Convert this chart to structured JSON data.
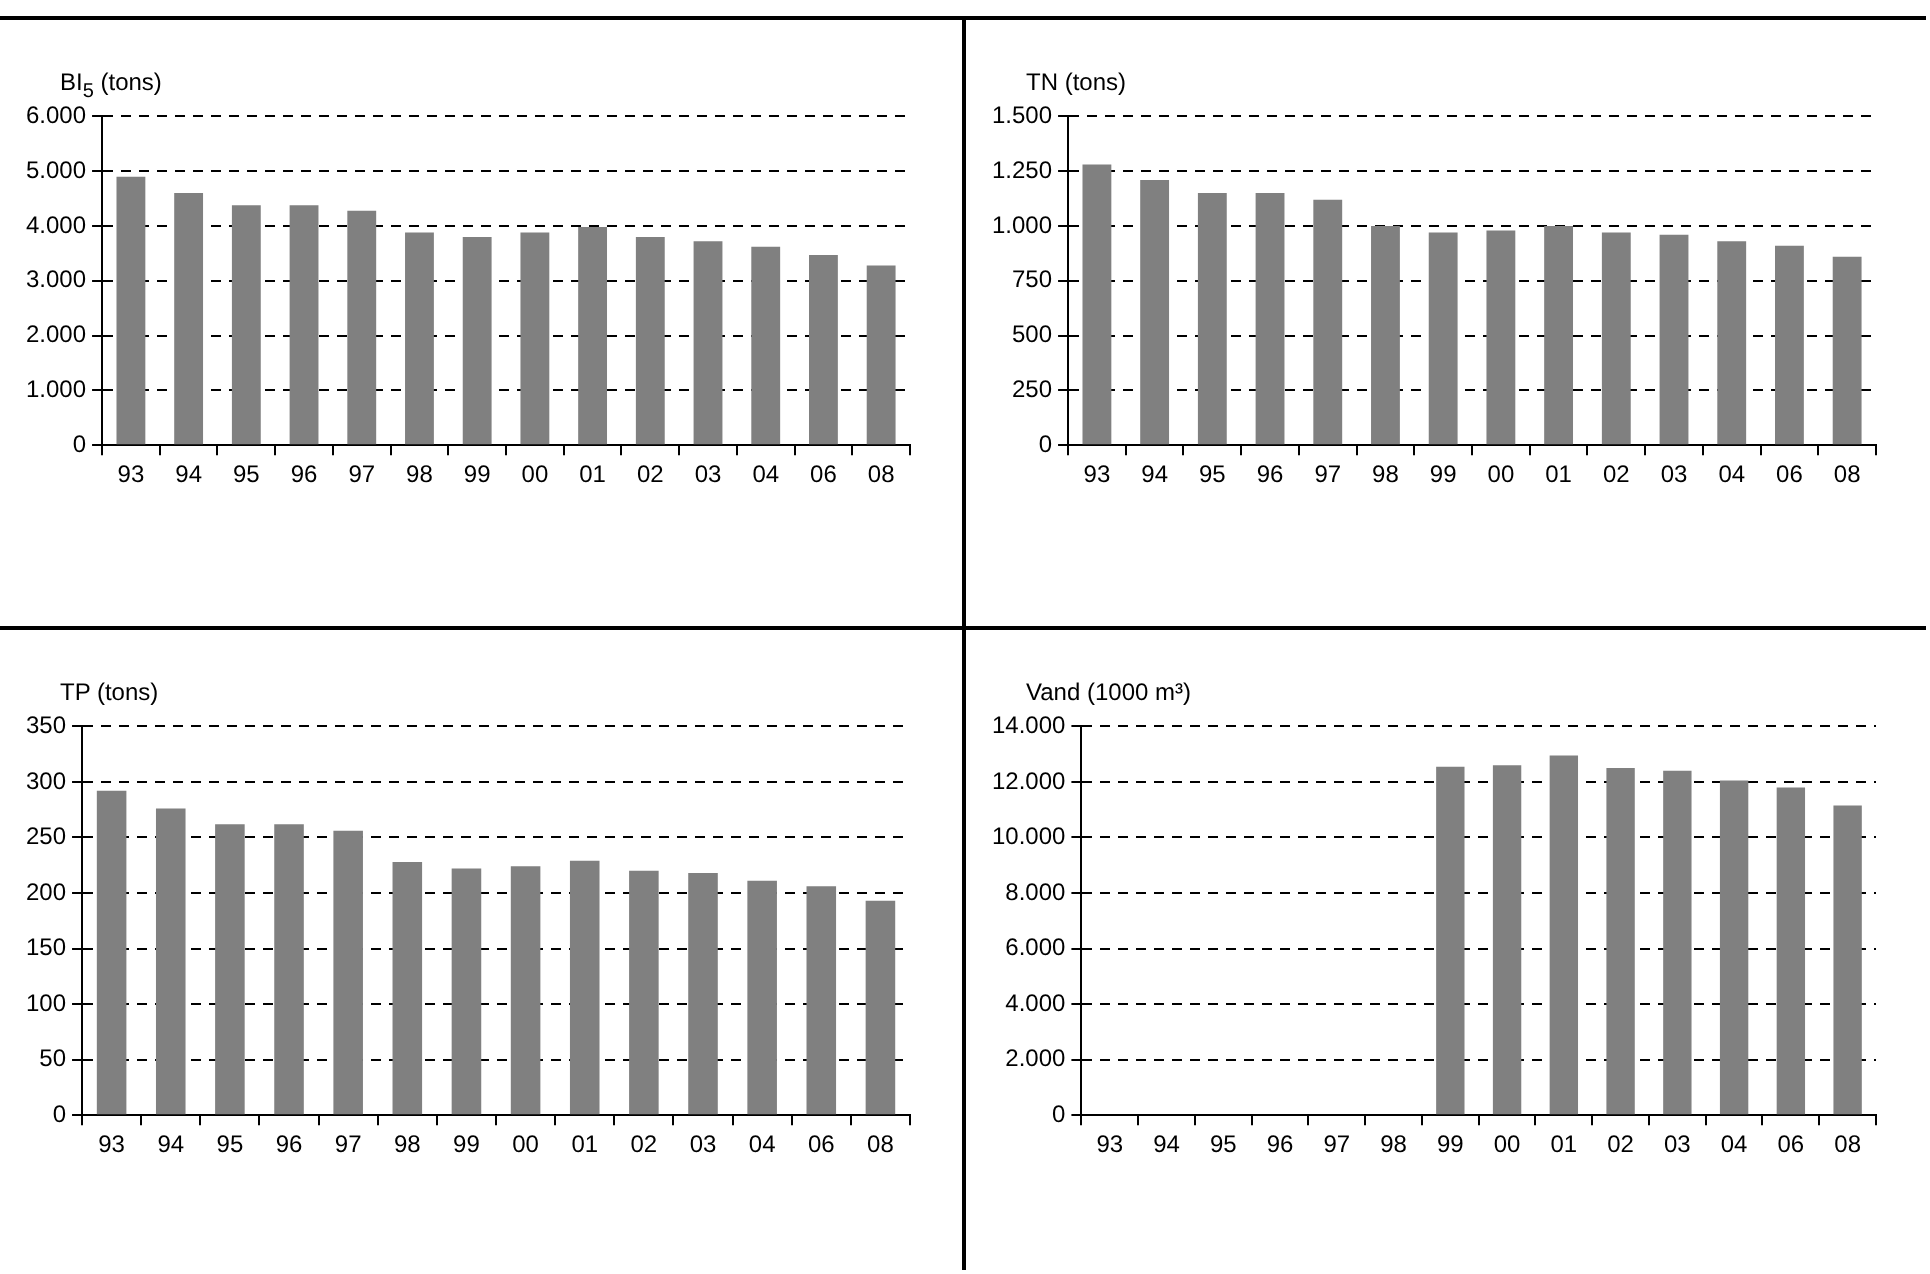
{
  "chart_data": [
    {
      "type": "bar",
      "ylabel": "BI$_{5}$ (tons)",
      "categories": [
        "93",
        "94",
        "95",
        "96",
        "97",
        "98",
        "99",
        "00",
        "01",
        "02",
        "03",
        "04",
        "06",
        "08"
      ],
      "color": "#808080",
      "values": [
        4900,
        4600,
        4380,
        4380,
        4280,
        3880,
        3800,
        3880,
        3980,
        3800,
        3720,
        3620,
        3470,
        3280
      ],
      "ylim": [
        0,
        6000
      ],
      "yticks": [
        0,
        {
          "value": 1000,
          "label": "1.000"
        },
        {
          "value": 2000,
          "label": "2.000"
        },
        {
          "value": 3000,
          "label": "3.000"
        },
        {
          "value": 4000,
          "label": "4.000"
        },
        {
          "value": 5000,
          "label": "5.000"
        },
        {
          "value": 6000,
          "label": "6.000"
        }
      ],
      "grid": "y",
      "legend": false
    },
    {
      "type": "bar",
      "ylabel": "TN (tons)",
      "categories": [
        "93",
        "94",
        "95",
        "96",
        "97",
        "98",
        "99",
        "00",
        "01",
        "02",
        "03",
        "04",
        "06",
        "08"
      ],
      "color": "#808080",
      "values": [
        1280,
        1210,
        1150,
        1150,
        1120,
        1000,
        970,
        980,
        1000,
        970,
        960,
        930,
        910,
        860
      ],
      "ylim": [
        0,
        1500
      ],
      "yticks": [
        0,
        250,
        500,
        750,
        {
          "value": 1000,
          "label": "1.000"
        },
        {
          "value": 1250,
          "label": "1.250"
        },
        {
          "value": 1500,
          "label": "1.500"
        }
      ],
      "grid": "y",
      "legend": false
    },
    {
      "type": "bar",
      "ylabel": "TP (tons)",
      "categories": [
        "93",
        "94",
        "95",
        "96",
        "97",
        "98",
        "99",
        "00",
        "01",
        "02",
        "03",
        "04",
        "06",
        "08"
      ],
      "color": "#808080",
      "values": [
        292,
        276,
        262,
        262,
        256,
        228,
        222,
        224,
        229,
        220,
        218,
        211,
        206,
        193
      ],
      "ylim": [
        0,
        350
      ],
      "yticks": [
        0,
        50,
        100,
        150,
        200,
        250,
        300,
        350
      ],
      "grid": "y",
      "legend": false
    },
    {
      "type": "bar",
      "ylabel": "Vand (1000 m³)",
      "categories": [
        "93",
        "94",
        "95",
        "96",
        "97",
        "98",
        "99",
        "00",
        "01",
        "02",
        "03",
        "04",
        "06",
        "08"
      ],
      "color": "#808080",
      "values": [
        null,
        null,
        null,
        null,
        null,
        null,
        12550,
        12600,
        12950,
        12500,
        12400,
        12050,
        11800,
        11150
      ],
      "ylim": [
        0,
        14000
      ],
      "yticks": [
        0,
        {
          "value": 2000,
          "label": "2.000"
        },
        {
          "value": 4000,
          "label": "4.000"
        },
        {
          "value": 6000,
          "label": "6.000"
        },
        {
          "value": 8000,
          "label": "8.000"
        },
        {
          "value": 10000,
          "label": "10.000"
        },
        {
          "value": 12000,
          "label": "12.000"
        },
        {
          "value": 14000,
          "label": "14.000"
        }
      ],
      "grid": "y",
      "legend": false
    }
  ]
}
